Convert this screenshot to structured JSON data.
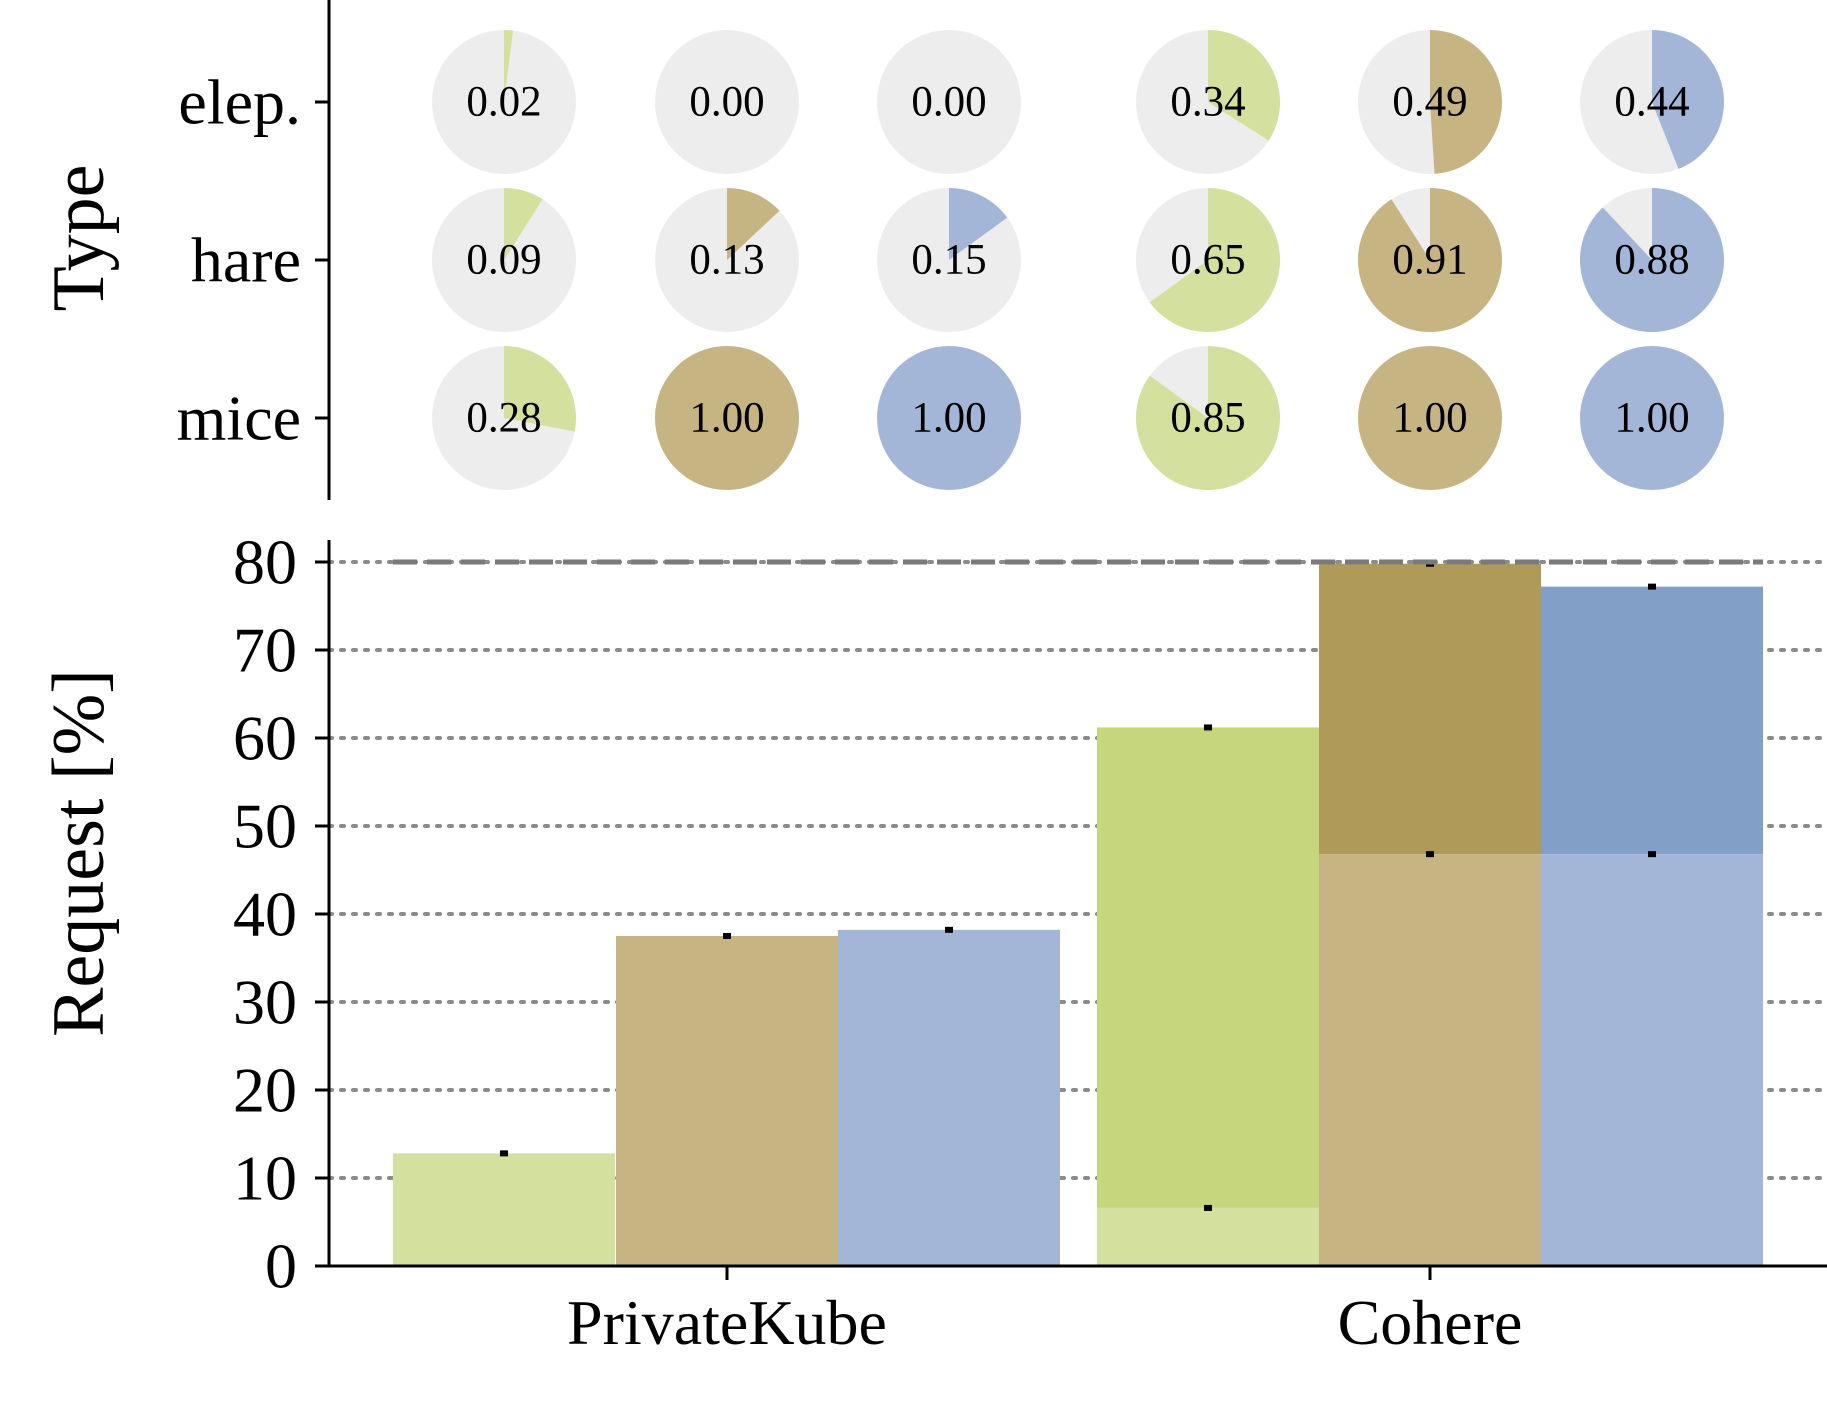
{
  "chart_data": [
    {
      "type": "pie",
      "ylabel": "Type",
      "rows": [
        "elep.",
        "hare",
        "mice"
      ],
      "groups": [
        "PrivateKube",
        "Cohere"
      ],
      "series_colors": [
        "#d4e09d",
        "#c7b483",
        "#a4b6d7"
      ],
      "remainder_color": "#ededed",
      "cells": [
        {
          "group": "PrivateKube",
          "series": 0,
          "values": [
            0.02,
            0.09,
            0.28
          ],
          "labels": [
            "0.02",
            "0.09",
            "0.28"
          ]
        },
        {
          "group": "PrivateKube",
          "series": 1,
          "values": [
            0.0,
            0.13,
            1.0
          ],
          "labels": [
            "0.00",
            "0.13",
            "1.00"
          ]
        },
        {
          "group": "PrivateKube",
          "series": 2,
          "values": [
            0.0,
            0.15,
            1.0
          ],
          "labels": [
            "0.00",
            "0.15",
            "1.00"
          ]
        },
        {
          "group": "Cohere",
          "series": 0,
          "values": [
            0.34,
            0.65,
            0.85
          ],
          "labels": [
            "0.34",
            "0.65",
            "0.85"
          ]
        },
        {
          "group": "Cohere",
          "series": 1,
          "values": [
            0.49,
            0.91,
            1.0
          ],
          "labels": [
            "0.49",
            "0.91",
            "1.00"
          ]
        },
        {
          "group": "Cohere",
          "series": 2,
          "values": [
            0.44,
            0.88,
            1.0
          ],
          "labels": [
            "0.44",
            "0.88",
            "1.00"
          ]
        }
      ]
    },
    {
      "type": "bar",
      "categories": [
        "PrivateKube",
        "Cohere"
      ],
      "ylabel": "Request [%]",
      "xlabel": "",
      "ylim": [
        0,
        80
      ],
      "yticks": [
        "0",
        "10",
        "20",
        "30",
        "40",
        "50",
        "60",
        "70",
        "80"
      ],
      "grid": "horizontal dotted",
      "reference_line": 80,
      "series": [
        {
          "values": [
            12.8,
            61.2
          ],
          "lower": [
            null,
            6.6
          ],
          "color": "#d4e09d",
          "upper_color": "#c5d67d"
        },
        {
          "values": [
            37.5,
            79.8
          ],
          "lower": [
            null,
            46.8
          ],
          "color": "#c7b483",
          "upper_color": "#b09a59"
        },
        {
          "values": [
            38.2,
            77.2
          ],
          "lower": [
            null,
            46.8
          ],
          "color": "#a4b6d7",
          "upper_color": "#829fc7"
        }
      ]
    }
  ]
}
